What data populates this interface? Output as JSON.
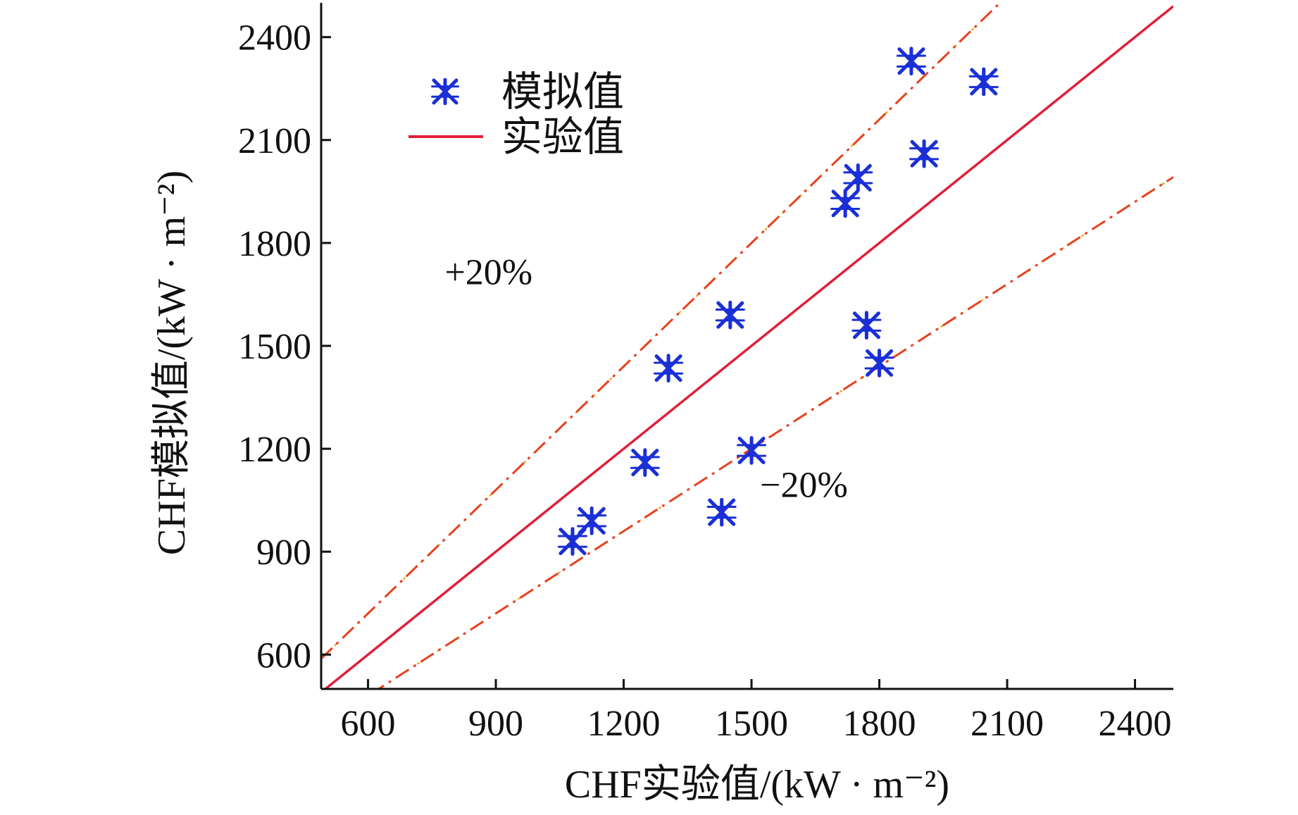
{
  "chart_data": {
    "type": "scatter",
    "xlabel": "CHF实验值/(kW · m⁻²)",
    "ylabel": "CHF模拟值/(kW · m⁻²)",
    "xlim": [
      490,
      2490
    ],
    "ylim": [
      500,
      2500
    ],
    "xticks": [
      600,
      900,
      1200,
      1500,
      1800,
      2100,
      2400
    ],
    "yticks": [
      600,
      900,
      1200,
      1500,
      1800,
      2100,
      2400
    ],
    "xtick_labels": [
      "600",
      "900",
      "1200",
      "1500",
      "1800",
      "2100",
      "2400"
    ],
    "ytick_labels": [
      "600",
      "900",
      "1200",
      "1500",
      "1800",
      "2100",
      "2400"
    ],
    "grid": false,
    "legend_position": "top-left",
    "series": [
      {
        "name": "模拟值",
        "kind": "scatter",
        "marker": "asterisk",
        "color": "#1a2fd6",
        "points": [
          {
            "x": 1080,
            "y": 930
          },
          {
            "x": 1125,
            "y": 990
          },
          {
            "x": 1250,
            "y": 1160
          },
          {
            "x": 1305,
            "y": 1435
          },
          {
            "x": 1430,
            "y": 1015
          },
          {
            "x": 1450,
            "y": 1590
          },
          {
            "x": 1500,
            "y": 1195
          },
          {
            "x": 1720,
            "y": 1915
          },
          {
            "x": 1750,
            "y": 1990
          },
          {
            "x": 1770,
            "y": 1560
          },
          {
            "x": 1800,
            "y": 1450
          },
          {
            "x": 1875,
            "y": 2330
          },
          {
            "x": 1905,
            "y": 2060
          },
          {
            "x": 2045,
            "y": 2270
          }
        ]
      },
      {
        "name": "实验值",
        "kind": "line",
        "style": "solid",
        "color": "#e0203a",
        "slope": 1.0
      },
      {
        "kind": "line",
        "style": "dashdot",
        "color": "#e8401c",
        "accent_color": "#f0a000",
        "slope": 1.2
      },
      {
        "kind": "line",
        "style": "dashdot",
        "color": "#e8401c",
        "accent_color": "#f0a000",
        "slope": 0.8
      }
    ],
    "annotations": [
      {
        "text": "+20%",
        "x": 780,
        "y": 1680
      },
      {
        "text": "−20%",
        "x": 1520,
        "y": 1060
      }
    ]
  }
}
